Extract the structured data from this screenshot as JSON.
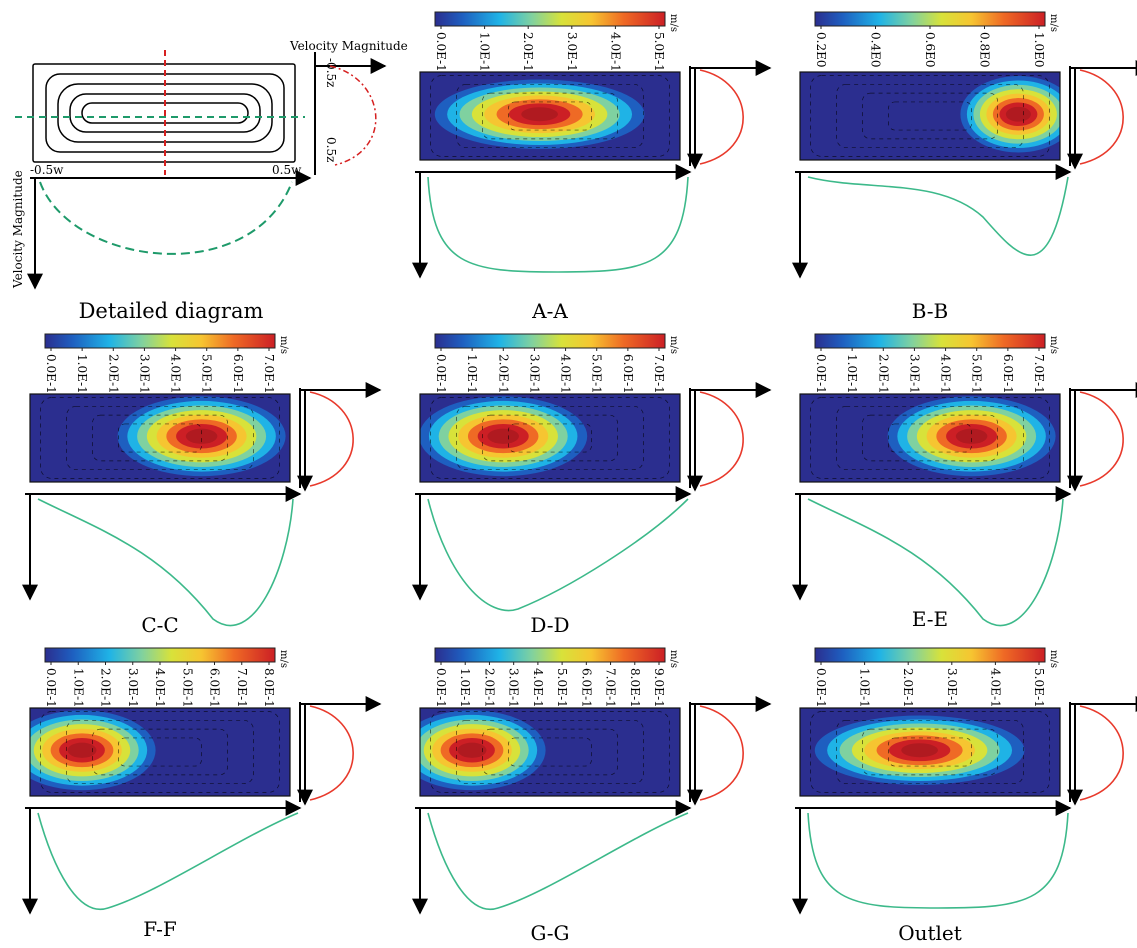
{
  "diagram": {
    "velocity_label_top": "Velocity Magnitude",
    "velocity_label_left": "Velocity Magnitude",
    "z_top": "-0.5z",
    "z_bottom": "0.5z",
    "w_left": "-0.5w",
    "w_right": "0.5w",
    "title": "Detailed diagram"
  },
  "unit": "m/s",
  "panels": [
    {
      "title": "A-A",
      "ticks": [
        "0.0E-1",
        "1.0E-1",
        "2.0E-1",
        "3.0E-1",
        "4.0E-1",
        "5.0E-1"
      ],
      "hot_spot": "centre-elongated"
    },
    {
      "title": "B-B",
      "ticks": [
        "0.2E0",
        "0.4E0",
        "0.6E0",
        "0.8E0",
        "1.0E0"
      ],
      "hot_spot": "right"
    },
    {
      "title": "C-C",
      "ticks": [
        "0.0E-1",
        "1.0E-1",
        "2.0E-1",
        "3.0E-1",
        "4.0E-1",
        "5.0E-1",
        "6.0E-1",
        "7.0E-1"
      ],
      "hot_spot": "right-centre"
    },
    {
      "title": "D-D",
      "ticks": [
        "0.0E-1",
        "1.0E-1",
        "2.0E-1",
        "3.0E-1",
        "4.0E-1",
        "5.0E-1",
        "6.0E-1",
        "7.0E-1"
      ],
      "hot_spot": "left-centre"
    },
    {
      "title": "E-E",
      "ticks": [
        "0.0E-1",
        "1.0E-1",
        "2.0E-1",
        "3.0E-1",
        "4.0E-1",
        "5.0E-1",
        "6.0E-1",
        "7.0E-1"
      ],
      "hot_spot": "right-centre"
    },
    {
      "title": "F-F",
      "ticks": [
        "0.0E-1",
        "1.0E-1",
        "2.0E-1",
        "3.0E-1",
        "4.0E-1",
        "5.0E-1",
        "6.0E-1",
        "7.0E-1",
        "8.0E-1"
      ],
      "hot_spot": "left"
    },
    {
      "title": "G-G",
      "ticks": [
        "0.0E-1",
        "1.0E-1",
        "2.0E-1",
        "3.0E-1",
        "4.0E-1",
        "5.0E-1",
        "6.0E-1",
        "7.0E-1",
        "8.0E-1",
        "9.0E-1"
      ],
      "hot_spot": "left"
    },
    {
      "title": "Outlet",
      "ticks": [
        "0.0E-1",
        "1.0E-1",
        "2.0E-1",
        "3.0E-1",
        "4.0E-1",
        "5.0E-1"
      ],
      "hot_spot": "centre-elongated"
    }
  ],
  "colors": {
    "profile_vertical": "#e8392b",
    "profile_horizontal": "#3cb98a",
    "diagram_red_line": "#d62020",
    "diagram_green_line": "#1e9a6a"
  }
}
